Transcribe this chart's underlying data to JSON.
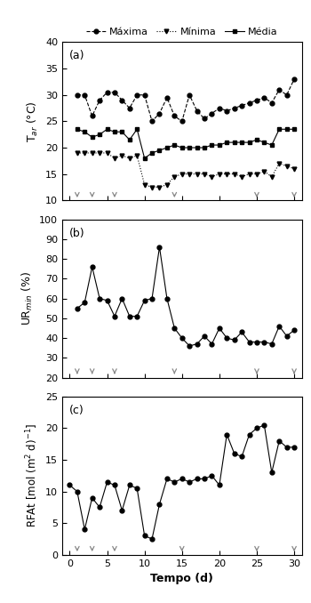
{
  "days_a": [
    1,
    2,
    3,
    4,
    5,
    6,
    7,
    8,
    9,
    10,
    11,
    12,
    13,
    14,
    15,
    16,
    17,
    18,
    19,
    20,
    21,
    22,
    23,
    24,
    25,
    26,
    27,
    28,
    29,
    30
  ],
  "T_max": [
    30,
    30,
    26,
    29,
    30.5,
    30.5,
    29,
    27.5,
    30,
    30,
    25,
    26.5,
    29.5,
    26,
    25,
    30,
    27,
    25.5,
    26.5,
    27.5,
    27,
    27.5,
    28,
    28.5,
    29,
    29.5,
    28.5,
    31,
    30,
    33
  ],
  "T_min": [
    19,
    19,
    19,
    19,
    19,
    18,
    18.5,
    18,
    18.5,
    13,
    12.5,
    12.5,
    13,
    14.5,
    15,
    15,
    15,
    15,
    14.5,
    15,
    15,
    15,
    14.5,
    15,
    15,
    15.5,
    14.5,
    17,
    16.5,
    16
  ],
  "T_med": [
    23.5,
    23,
    22,
    22.5,
    23.5,
    23,
    23,
    21.5,
    23.5,
    18,
    19,
    19.5,
    20,
    20.5,
    20,
    20,
    20,
    20,
    20.5,
    20.5,
    21,
    21,
    21,
    21,
    21.5,
    21,
    20.5,
    23.5,
    23.5,
    23.5
  ],
  "days_b": [
    1,
    2,
    3,
    4,
    5,
    6,
    7,
    8,
    9,
    10,
    11,
    12,
    13,
    14,
    15,
    16,
    17,
    18,
    19,
    20,
    21,
    22,
    23,
    24,
    25,
    26,
    27,
    28,
    29,
    30
  ],
  "UR_min": [
    55,
    58,
    76,
    60,
    59,
    51,
    60,
    51,
    51,
    59,
    60,
    86,
    60,
    45,
    40,
    36,
    37,
    41,
    37,
    45,
    40,
    39,
    43,
    38,
    38,
    38,
    37,
    46,
    41,
    44
  ],
  "days_c": [
    0,
    1,
    2,
    3,
    4,
    5,
    6,
    7,
    8,
    9,
    10,
    11,
    12,
    13,
    14,
    15,
    16,
    17,
    18,
    19,
    20,
    21,
    22,
    23,
    24,
    25,
    26,
    27,
    28,
    29,
    30
  ],
  "RFAt": [
    11,
    10,
    4,
    9,
    7.5,
    11.5,
    11,
    7,
    11,
    10.5,
    3,
    2.5,
    8,
    12,
    11.5,
    12,
    11.5,
    12,
    12,
    12.5,
    11,
    19,
    16,
    15.5,
    19,
    20,
    20.5,
    13,
    18,
    17,
    17
  ],
  "arrow_days_a": [
    1,
    3,
    6,
    14,
    25,
    30
  ],
  "arrow_days_b": [
    1,
    3,
    6,
    14,
    25,
    30
  ],
  "arrow_days_c": [
    1,
    3,
    6,
    15,
    25,
    30
  ],
  "ylim_a": [
    10,
    40
  ],
  "ylim_b": [
    20,
    100
  ],
  "ylim_c": [
    0,
    25
  ],
  "yticks_a": [
    10,
    15,
    20,
    25,
    30,
    35,
    40
  ],
  "yticks_b": [
    20,
    30,
    40,
    50,
    60,
    70,
    80,
    90,
    100
  ],
  "yticks_c": [
    0,
    5,
    10,
    15,
    20,
    25
  ],
  "xlabel": "Tempo (d)",
  "ylabel_a": "T$_{ar}$ (°C)",
  "ylabel_b": "UR$_{min}$ (%)",
  "ylabel_c": "RFAt [mol (m$^{2}$ d)$^{-1}$]",
  "label_max": "Máxima",
  "label_min": "Mínima",
  "label_med": "Média",
  "panel_labels": [
    "(a)",
    "(b)",
    "(c)"
  ],
  "xlim": [
    -1,
    31
  ],
  "xticks": [
    0,
    5,
    10,
    15,
    20,
    25,
    30
  ]
}
